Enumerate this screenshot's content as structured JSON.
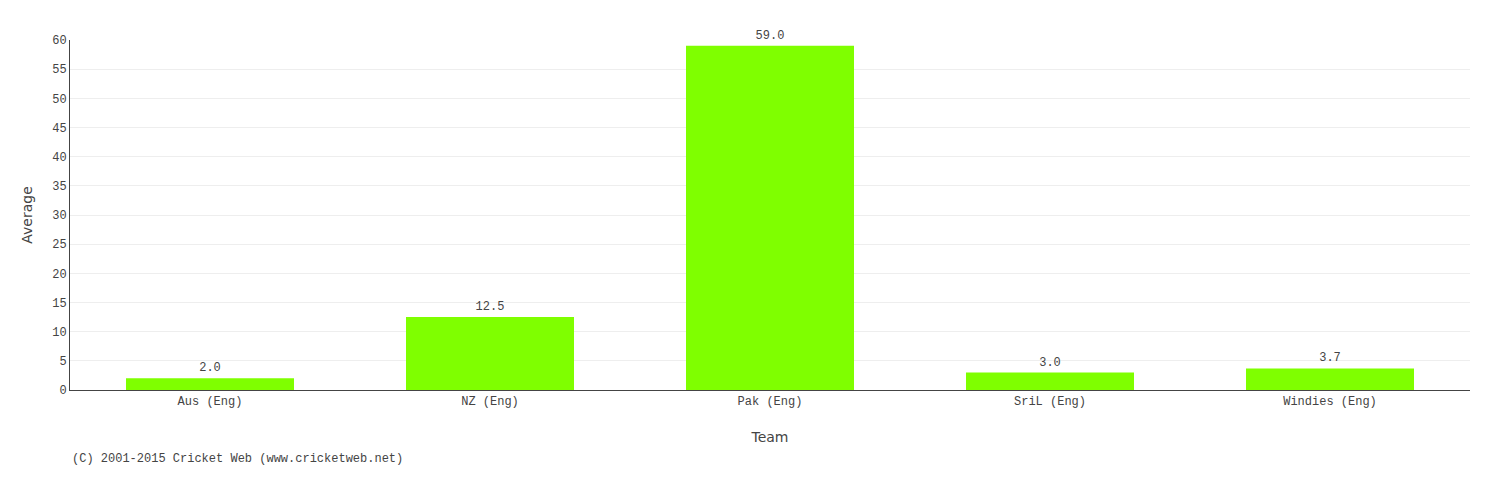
{
  "chart_data": {
    "type": "bar",
    "categories": [
      "Aus (Eng)",
      "NZ (Eng)",
      "Pak (Eng)",
      "SriL (Eng)",
      "Windies (Eng)"
    ],
    "values": [
      2.0,
      12.5,
      59.0,
      3.0,
      3.7
    ],
    "value_labels": [
      "2.0",
      "12.5",
      "59.0",
      "3.0",
      "3.7"
    ],
    "data_labels": true,
    "color": "#7FFF00",
    "xlabel": "Team",
    "ylabel": "Average",
    "ylim": [
      0,
      60
    ],
    "yticks": [
      0,
      5,
      10,
      15,
      20,
      25,
      30,
      35,
      40,
      45,
      50,
      55,
      60
    ],
    "grid": true,
    "annotations": [
      "(C) 2001-2015 Cricket Web (www.cricketweb.net)"
    ]
  }
}
